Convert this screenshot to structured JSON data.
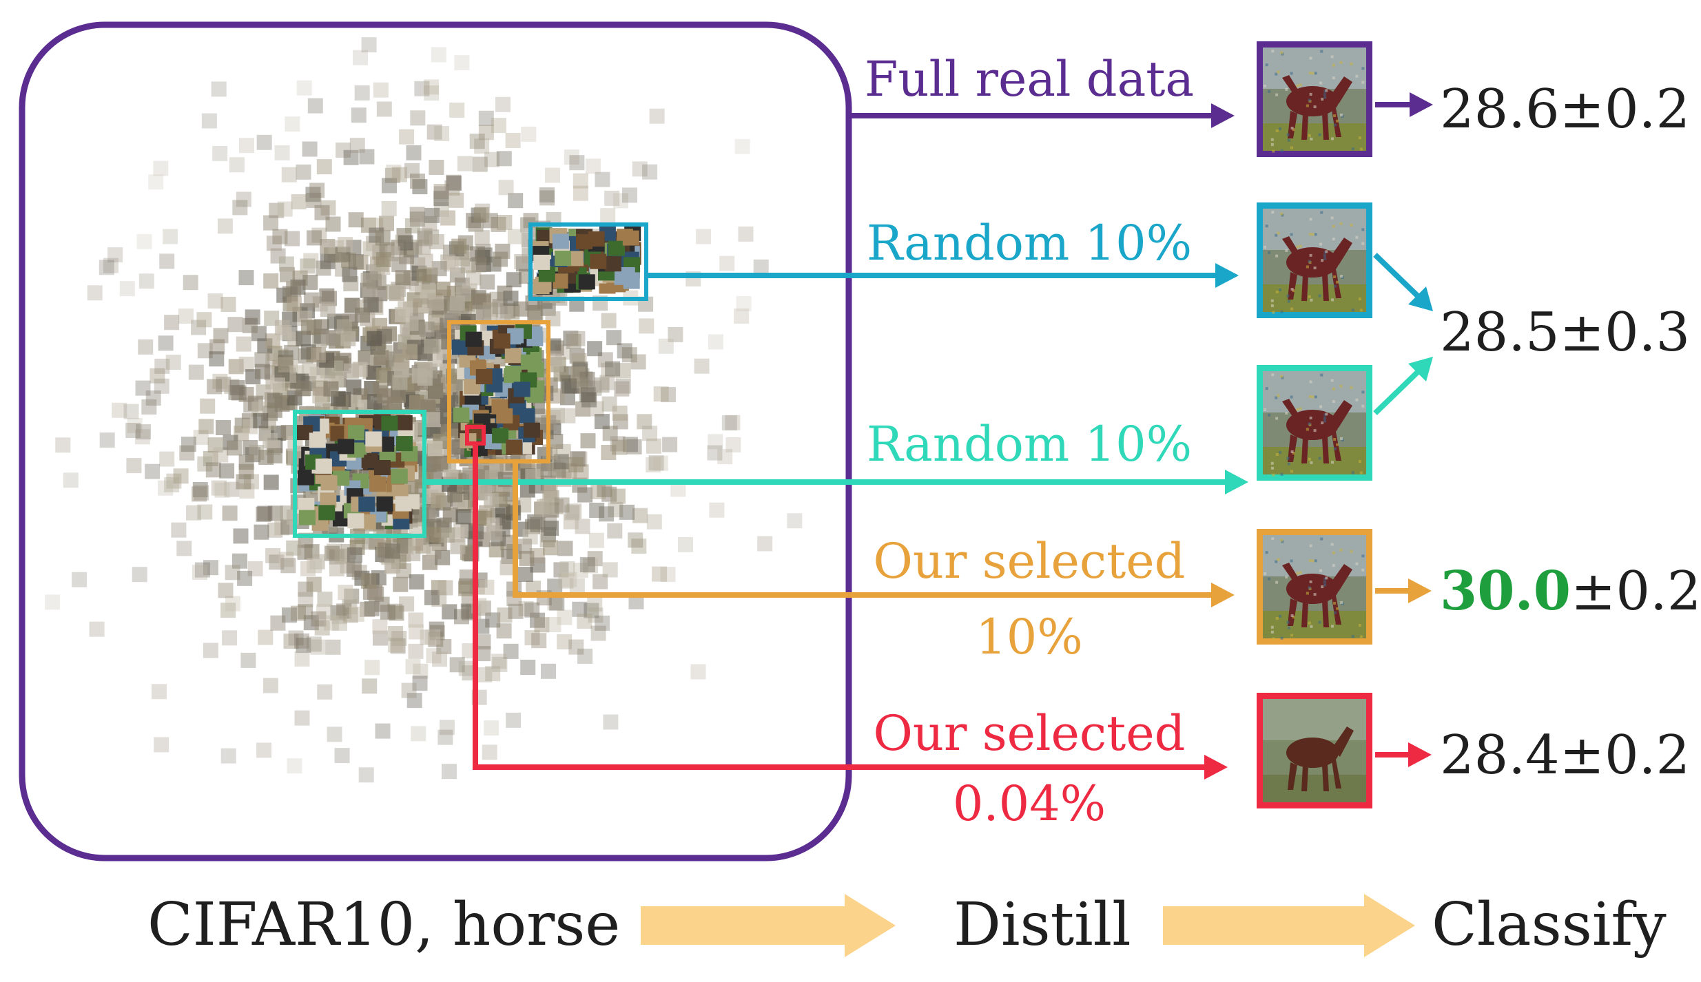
{
  "colors": {
    "full": "#5c2d91",
    "random_a": "#1aa6c9",
    "random_b": "#2fd8b8",
    "selected": "#e8a23c",
    "selected_small": "#ee2a43",
    "best": "#1f9e3e",
    "process_arrow": "#fbd38a",
    "text": "#1f1f1f"
  },
  "branches": [
    {
      "label": "Full real data",
      "result": "28.6±0.2"
    },
    {
      "label": "Random 10%"
    },
    {
      "label": "Random 10%"
    },
    {
      "label_line1": "Our selected",
      "label_line2": "10%",
      "result_best": "30.0",
      "result_rest": "±0.2"
    },
    {
      "label_line1": "Our selected",
      "label_line2": "0.04%",
      "result": "28.4±0.2"
    }
  ],
  "shared_result": "28.5±0.3",
  "pipeline": {
    "step1": "CIFAR10, horse",
    "step2": "Distill",
    "step3": "Classify"
  },
  "icons": {
    "distilled_image": "horse-image-icon",
    "process_arrow": "right-arrow-icon"
  }
}
